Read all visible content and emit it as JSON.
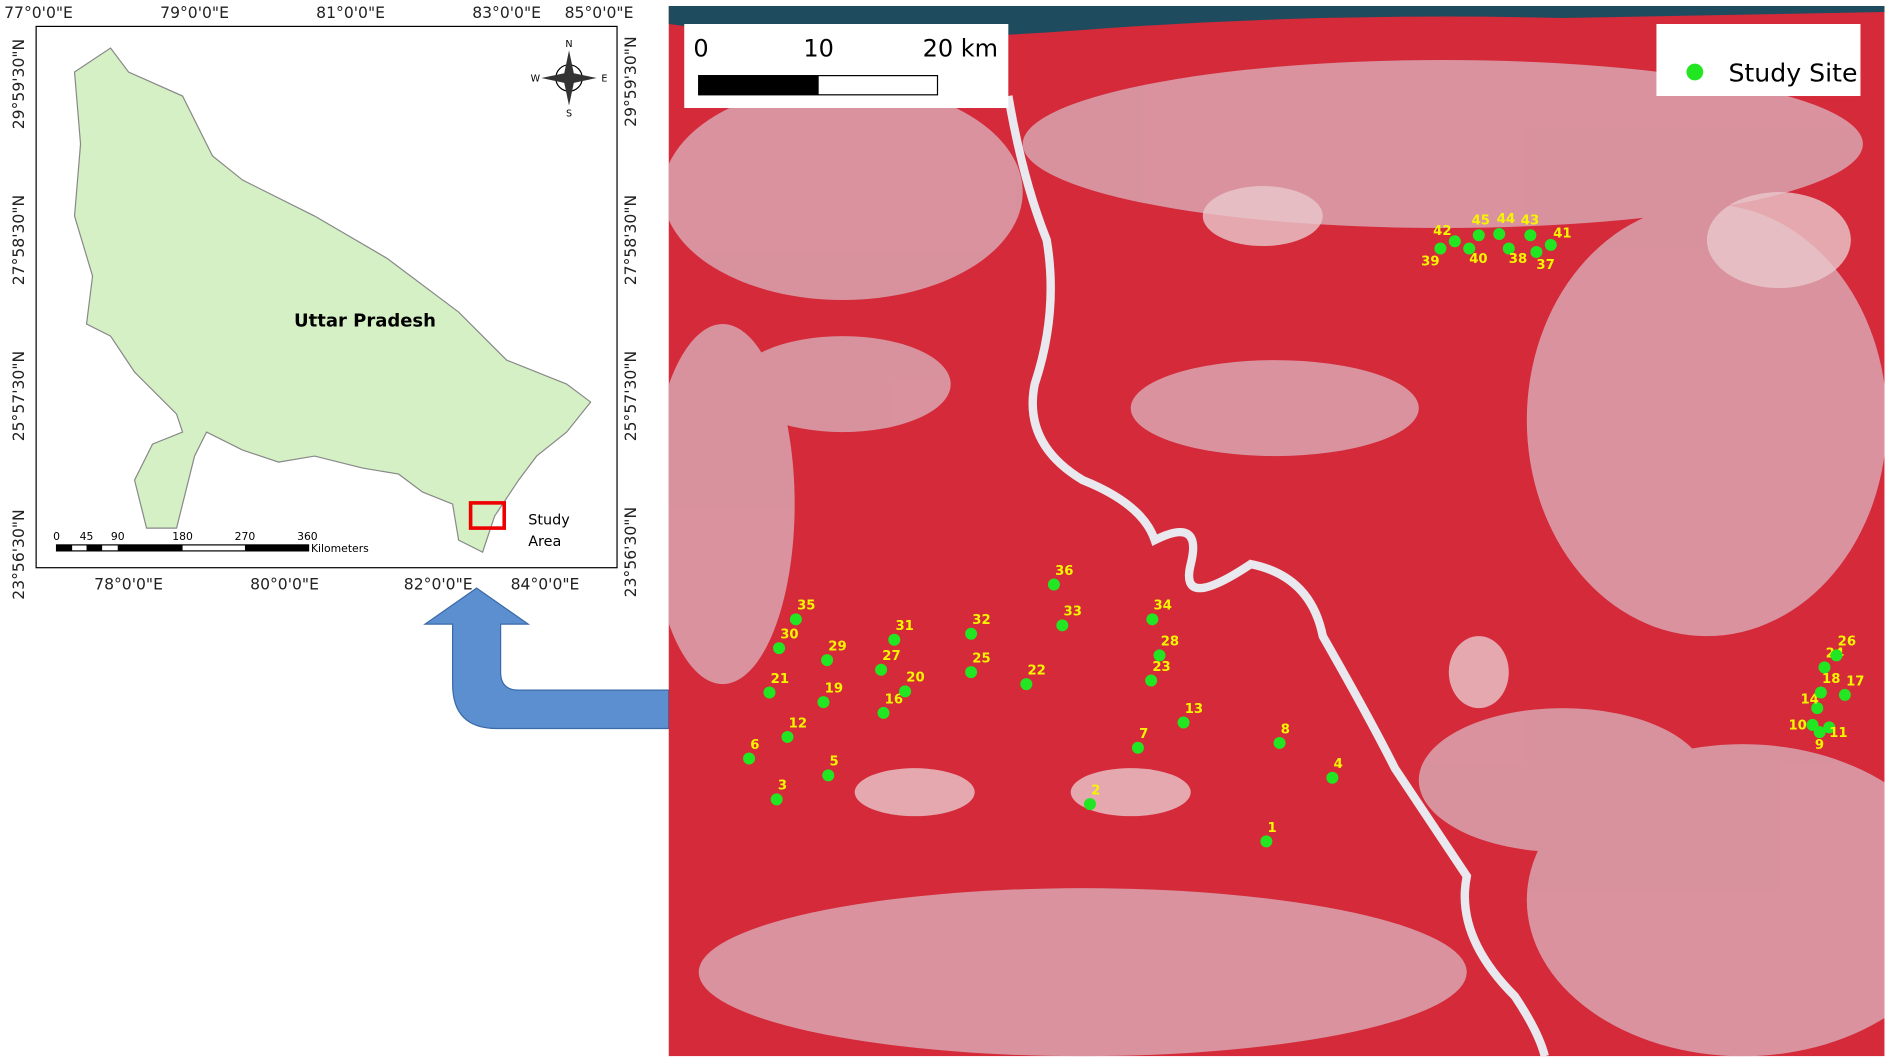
{
  "inset": {
    "lon_top": [
      "77°0'0\"E",
      "79°0'0\"E",
      "81°0'0\"E",
      "83°0'0\"E",
      "85°0'0\"E"
    ],
    "lon_bottom": [
      "78°0'0\"E",
      "80°0'0\"E",
      "82°0'0\"E",
      "84°0'0\"E"
    ],
    "lat_left": [
      "29°59'30\"N",
      "27°58'30\"N",
      "25°57'30\"N",
      "23°56'30\"N"
    ],
    "lat_right": [
      "29°59'30\"N",
      "27°58'30\"N",
      "25°57'30\"N",
      "23°56'30\"N"
    ],
    "region": "Uttar Pradesh",
    "scale_ticks": [
      "0",
      "45",
      "90",
      "180",
      "270",
      "360"
    ],
    "scale_unit": "Kilometers",
    "study_area": [
      "Study",
      "Area"
    ],
    "compass": {
      "n": "N",
      "e": "E",
      "s": "S",
      "w": "W"
    }
  },
  "map": {
    "scale": [
      "0",
      "10",
      "20 km"
    ],
    "legend": "Study Site",
    "sites": [
      "1",
      "2",
      "3",
      "4",
      "5",
      "6",
      "7",
      "8",
      "9",
      "10",
      "11",
      "12",
      "13",
      "14",
      "16",
      "17",
      "18",
      "19",
      "20",
      "21",
      "22",
      "23",
      "24",
      "25",
      "26",
      "27",
      "28",
      "29",
      "30",
      "31",
      "32",
      "33",
      "34",
      "35",
      "36",
      "37",
      "38",
      "39",
      "40",
      "41",
      "42",
      "43",
      "44",
      "45"
    ]
  }
}
